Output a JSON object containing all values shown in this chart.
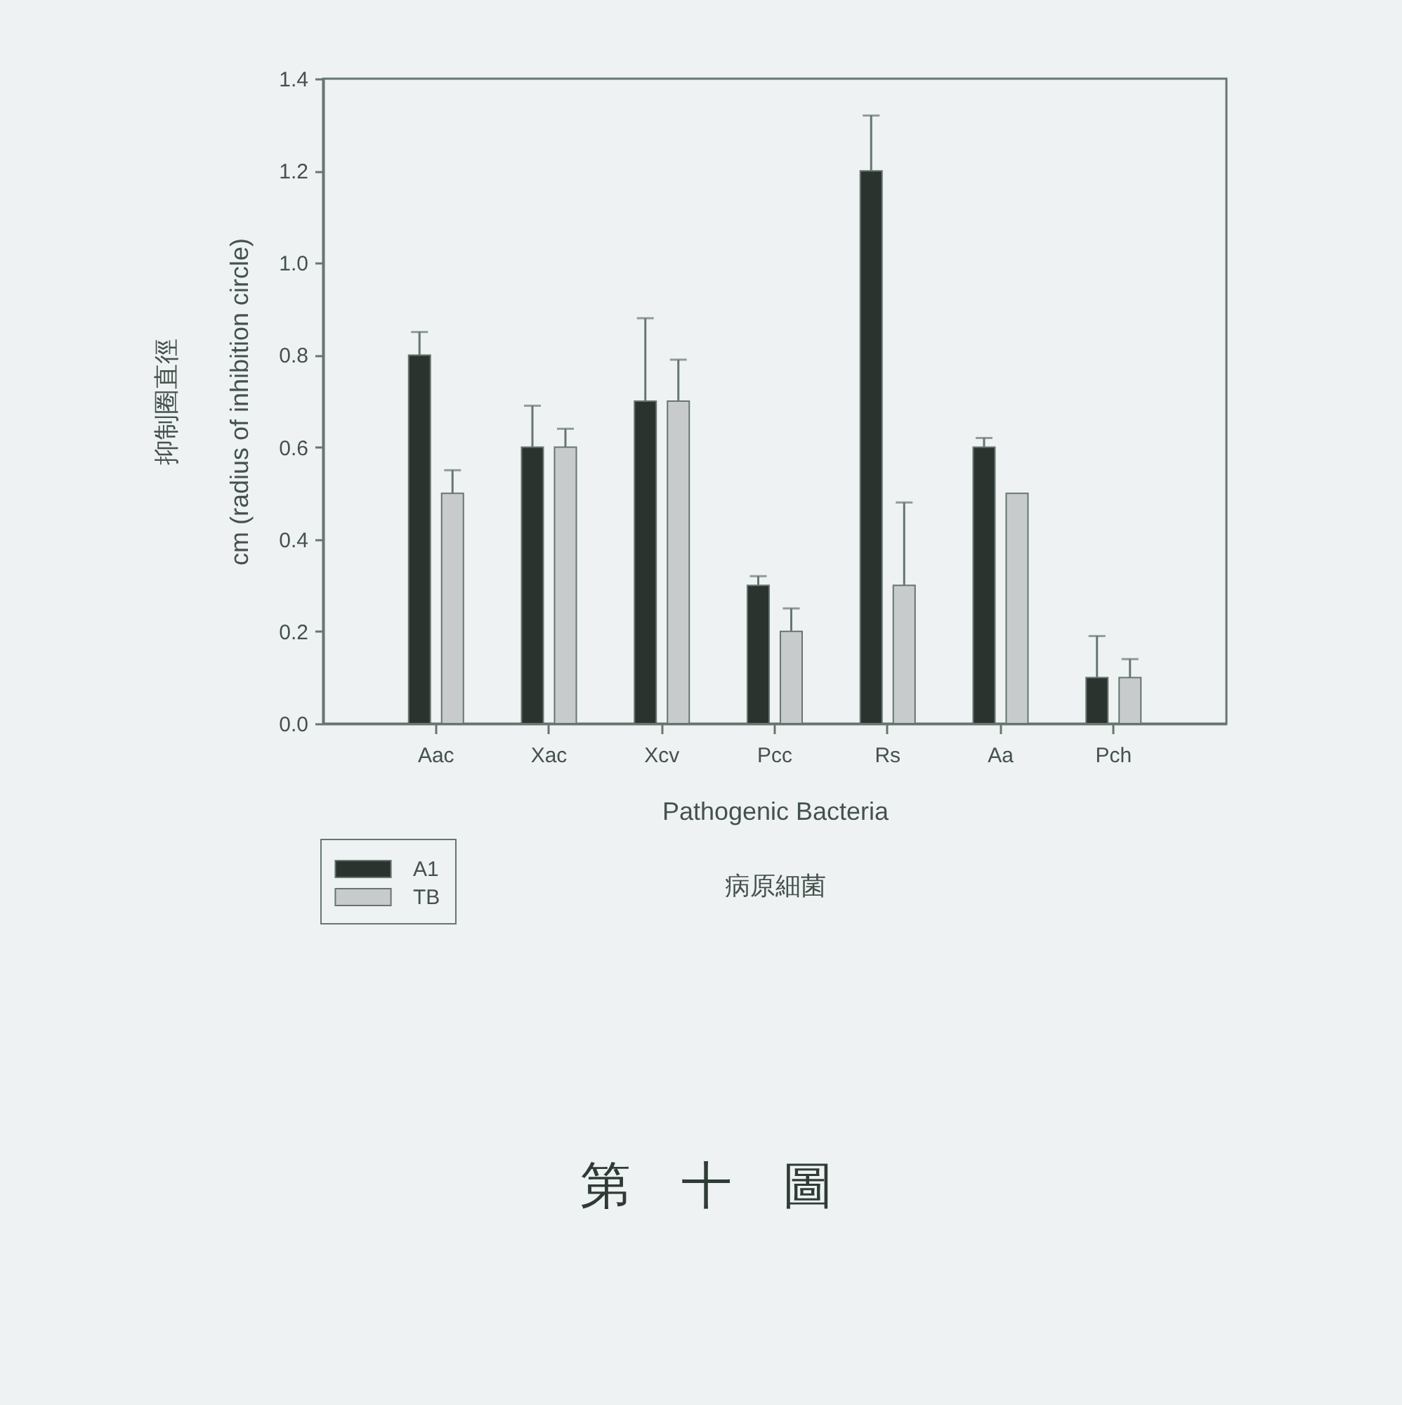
{
  "chart_data": {
    "type": "bar",
    "ylabel": "抑制圈直徑\ncm (radius of inhibition circle)",
    "xlabel": "Pathogenic Bacteria\n病原細菌",
    "categories": [
      "Aac",
      "Xac",
      "Xcv",
      "Pcc",
      "Rs",
      "Aa",
      "Pch"
    ],
    "series": [
      {
        "name": "A1",
        "color": "#2b332e",
        "values": [
          0.8,
          0.6,
          0.7,
          0.3,
          1.2,
          0.6,
          0.1
        ],
        "errors": [
          [
            0.8,
            0.85
          ],
          [
            0.6,
            0.69
          ],
          [
            0.7,
            0.88
          ],
          [
            0.3,
            0.32
          ],
          [
            1.2,
            1.32
          ],
          [
            0.6,
            0.62
          ],
          [
            0.1,
            0.19
          ]
        ]
      },
      {
        "name": "TB",
        "color": "#c8cbcb",
        "values": [
          0.5,
          0.6,
          0.7,
          0.2,
          0.3,
          0.5,
          0.1
        ],
        "errors": [
          [
            0.5,
            0.55
          ],
          [
            0.6,
            0.64
          ],
          [
            0.7,
            0.79
          ],
          [
            0.2,
            0.25
          ],
          [
            0.3,
            0.48
          ],
          null,
          [
            0.1,
            0.14
          ]
        ]
      }
    ],
    "ylim": [
      0,
      1.4
    ],
    "yticks": [
      {
        "value": 0,
        "label": "0.0"
      },
      0.2,
      0.4,
      0.6,
      0.8,
      {
        "value": 1,
        "label": "1.0"
      },
      1.2,
      1.4
    ],
    "legend": "bottom left",
    "annotations": [
      "第　十　圖"
    ]
  }
}
